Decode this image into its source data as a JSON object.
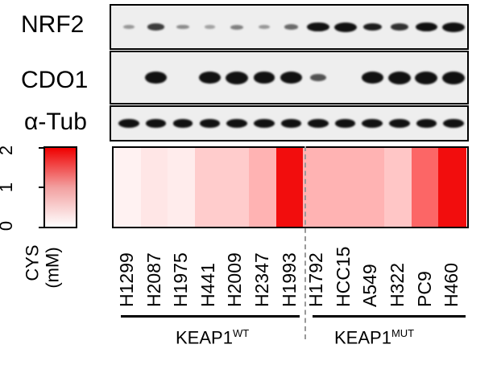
{
  "blots": [
    {
      "label": "NRF2",
      "intensities": [
        0.15,
        0.55,
        0.2,
        0.1,
        0.25,
        0.15,
        0.35,
        0.95,
        1.0,
        0.7,
        0.6,
        0.95,
        1.0
      ]
    },
    {
      "label": "CDO1",
      "intensities": [
        0.0,
        0.9,
        0.0,
        0.9,
        1.0,
        0.85,
        0.95,
        0.45,
        0.0,
        0.95,
        1.0,
        1.0,
        1.0
      ]
    },
    {
      "label": "α-Tub",
      "intensities": [
        0.85,
        0.85,
        0.8,
        0.8,
        0.85,
        0.85,
        0.85,
        0.85,
        0.85,
        0.85,
        0.85,
        0.85,
        0.85
      ]
    }
  ],
  "scale": {
    "title": "CYS",
    "unit": "(mM)",
    "ticks": [
      "0",
      "1",
      "2"
    ],
    "range": [
      0,
      2
    ]
  },
  "cell_lines": [
    "H1299",
    "H2087",
    "H1975",
    "H441",
    "H2009",
    "H2347",
    "H1993",
    "H1792",
    "HCC15",
    "A549",
    "H322",
    "PC9",
    "H460"
  ],
  "cys_values": [
    0.1,
    0.2,
    0.15,
    0.4,
    0.4,
    0.6,
    1.9,
    0.6,
    0.6,
    0.6,
    0.45,
    1.2,
    1.9
  ],
  "groups": [
    {
      "base": "KEAP1",
      "sup": "WT"
    },
    {
      "base": "KEAP1",
      "sup": "MUT"
    }
  ],
  "colors": {
    "heat_high": "#f00000",
    "heat_low": "#ffffff",
    "band": "#111111"
  }
}
